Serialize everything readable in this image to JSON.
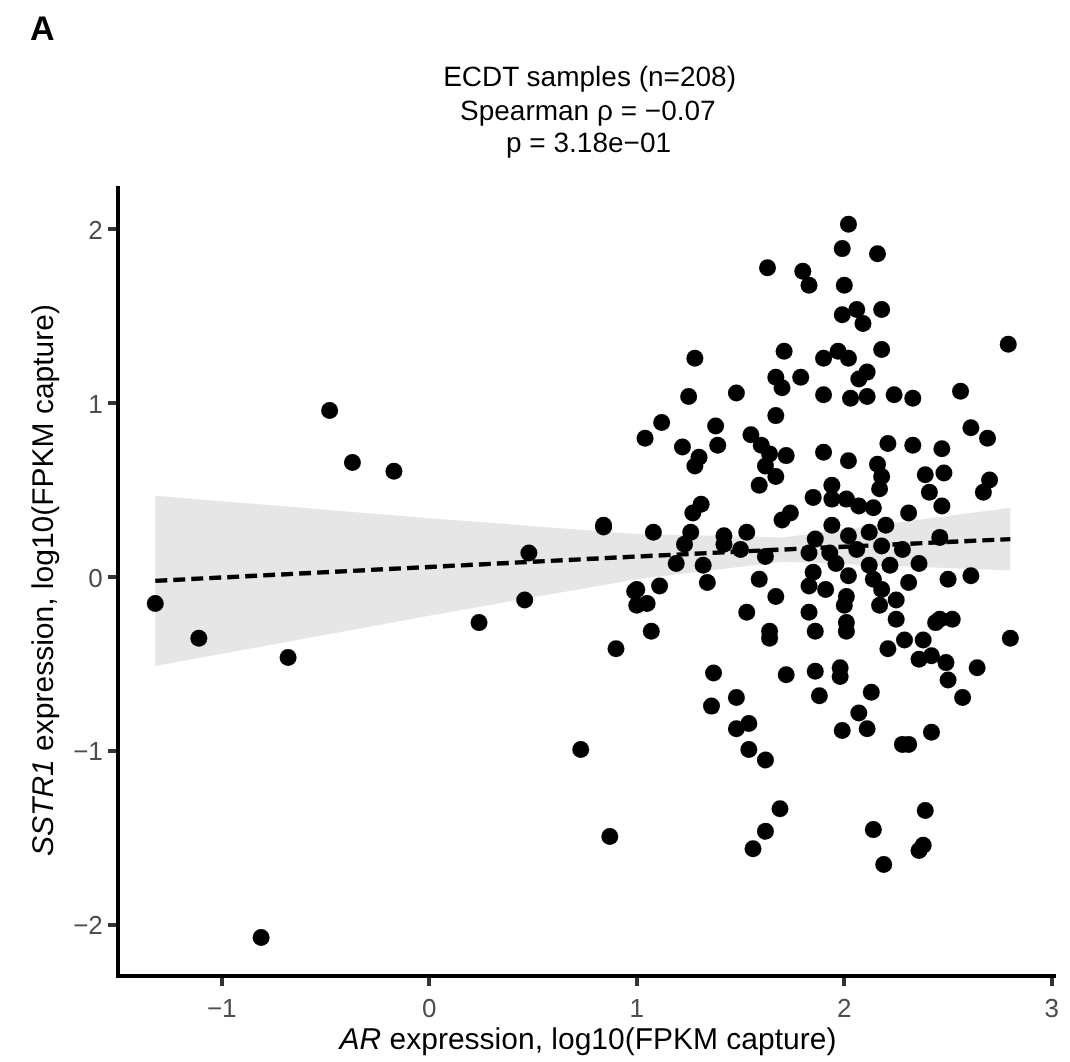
{
  "chart_data": {
    "type": "scatter",
    "title": "ECDT samples (n=208)",
    "annotations": [
      "Spearman ρ = −0.07",
      "p = 3.18e−01",
      "A"
    ],
    "xlabel": "AR expression, log10(FPKM capture)",
    "ylabel": "SSTR1 expression, log10(FPKM capture)",
    "xlim": [
      -1.49,
      3.02
    ],
    "ylim": [
      -2.28,
      2.25
    ],
    "xticks": [
      {
        "value": -1,
        "label": "−1"
      },
      0,
      1,
      2,
      3
    ],
    "yticks": [
      {
        "value": -2,
        "label": "−2"
      },
      {
        "value": -1,
        "label": "−1"
      },
      0,
      1,
      2
    ],
    "series": [
      {
        "color": "#000000",
        "marker": "circle",
        "x": [
          -1.32,
          -1.11,
          -0.68,
          -0.48,
          -0.37,
          -0.17,
          -0.81,
          0.24,
          0.46,
          0.48,
          0.84,
          0.73,
          0.87,
          0.9,
          0.99,
          1.0,
          2.02,
          1.99,
          2.16,
          1.63,
          1.8,
          1.83,
          2.0,
          1.99,
          2.06,
          2.09,
          2.18,
          2.79,
          1.28,
          1.71,
          1.9,
          1.97,
          2.02,
          2.18,
          1.79,
          1.67,
          1.7,
          2.07,
          2.11,
          1.25,
          1.48,
          1.9,
          2.03,
          2.11,
          2.24,
          2.33,
          2.56,
          1.12,
          1.04,
          1.67,
          1.38,
          1.22,
          1.39,
          1.3,
          1.28,
          1.55,
          1.6,
          1.64,
          1.72,
          1.62,
          1.67,
          1.59,
          1.9,
          2.02,
          2.21,
          2.33,
          2.47,
          2.61,
          2.69,
          2.16,
          2.18,
          2.17,
          2.39,
          2.48,
          2.41,
          2.47,
          2.7,
          2.67,
          1.94,
          1.85,
          1.94,
          2.01,
          2.07,
          2.14,
          1.31,
          1.27,
          1.74,
          1.7,
          2.31,
          0.84,
          1.08,
          1.26,
          1.42,
          1.53,
          1.23,
          1.42,
          1.5,
          1.62,
          1.19,
          1.32,
          1.86,
          1.94,
          2.02,
          2.12,
          2.2,
          2.46,
          1.83,
          1.93,
          2.06,
          2.18,
          2.28,
          1.85,
          1.96,
          2.02,
          2.12,
          2.22,
          2.36,
          1.0,
          1.11,
          1.05,
          1.34,
          1.59,
          1.83,
          1.91,
          2.01,
          2.14,
          2.18,
          2.25,
          2.31,
          2.5,
          2.61,
          1.53,
          1.67,
          1.83,
          2.0,
          2.17,
          2.46,
          1.07,
          1.64,
          2.01,
          2.25,
          1.64,
          1.86,
          2.01,
          2.21,
          2.29,
          2.38,
          2.44,
          2.52,
          2.36,
          2.42,
          2.49,
          2.5,
          2.64,
          2.57,
          2.8,
          1.37,
          1.36,
          1.48,
          1.72,
          1.86,
          1.98,
          1.98,
          1.88,
          2.13,
          2.07,
          1.48,
          1.54,
          1.54,
          1.62,
          1.99,
          2.11,
          2.28,
          2.31,
          2.42,
          1.69,
          1.62,
          1.56,
          2.14,
          2.19,
          2.39,
          2.38,
          2.36
        ],
        "values": [
          -0.15,
          -0.35,
          -0.46,
          0.96,
          0.66,
          0.61,
          -2.07,
          -0.26,
          -0.13,
          0.14,
          0.29,
          -0.99,
          -1.49,
          -0.41,
          -0.08,
          -0.16,
          2.03,
          1.89,
          1.86,
          1.78,
          1.76,
          1.68,
          1.68,
          1.51,
          1.54,
          1.46,
          1.54,
          1.34,
          1.26,
          1.3,
          1.26,
          1.3,
          1.26,
          1.31,
          1.15,
          1.15,
          1.09,
          1.14,
          1.18,
          1.04,
          1.06,
          1.05,
          1.03,
          1.04,
          1.05,
          1.03,
          1.07,
          0.89,
          0.8,
          0.93,
          0.87,
          0.75,
          0.76,
          0.69,
          0.64,
          0.82,
          0.76,
          0.71,
          0.7,
          0.64,
          0.58,
          0.53,
          0.72,
          0.67,
          0.77,
          0.76,
          0.74,
          0.86,
          0.8,
          0.65,
          0.58,
          0.51,
          0.59,
          0.6,
          0.49,
          0.41,
          0.56,
          0.49,
          0.53,
          0.46,
          0.45,
          0.45,
          0.41,
          0.4,
          0.42,
          0.37,
          0.37,
          0.33,
          0.37,
          0.3,
          0.26,
          0.26,
          0.24,
          0.26,
          0.19,
          0.19,
          0.16,
          0.12,
          0.08,
          0.07,
          0.22,
          0.3,
          0.24,
          0.26,
          0.3,
          0.23,
          0.14,
          0.14,
          0.16,
          0.18,
          0.16,
          0.03,
          0.08,
          0.01,
          0.07,
          0.07,
          0.08,
          -0.07,
          -0.05,
          -0.15,
          -0.03,
          -0.01,
          -0.05,
          -0.07,
          -0.11,
          -0.01,
          -0.07,
          -0.13,
          -0.03,
          -0.01,
          0.01,
          -0.2,
          -0.11,
          -0.2,
          -0.16,
          -0.16,
          -0.24,
          -0.31,
          -0.31,
          -0.26,
          -0.24,
          -0.35,
          -0.31,
          -0.31,
          -0.41,
          -0.36,
          -0.36,
          -0.26,
          -0.24,
          -0.47,
          -0.45,
          -0.49,
          -0.59,
          -0.52,
          -0.69,
          -0.35,
          -0.55,
          -0.74,
          -0.69,
          -0.56,
          -0.54,
          -0.52,
          -0.57,
          -0.68,
          -0.66,
          -0.78,
          -0.87,
          -0.84,
          -0.99,
          -1.05,
          -0.88,
          -0.87,
          -0.96,
          -0.96,
          -0.89,
          -1.33,
          -1.46,
          -1.56,
          -1.45,
          -1.65,
          -1.34,
          -1.54,
          -1.57
        ]
      },
      {
        "type": "line",
        "color": "#000000",
        "line_style": "dashed",
        "marker": "none",
        "x": [
          -1.32,
          0,
          1,
          1.7,
          2.8
        ],
        "values": [
          -0.02,
          0.06,
          0.12,
          0.16,
          0.22
        ],
        "lower": [
          -0.51,
          -0.22,
          -0.01,
          0.09,
          0.04
        ],
        "upper": [
          0.47,
          0.34,
          0.25,
          0.23,
          0.4
        ]
      }
    ]
  }
}
